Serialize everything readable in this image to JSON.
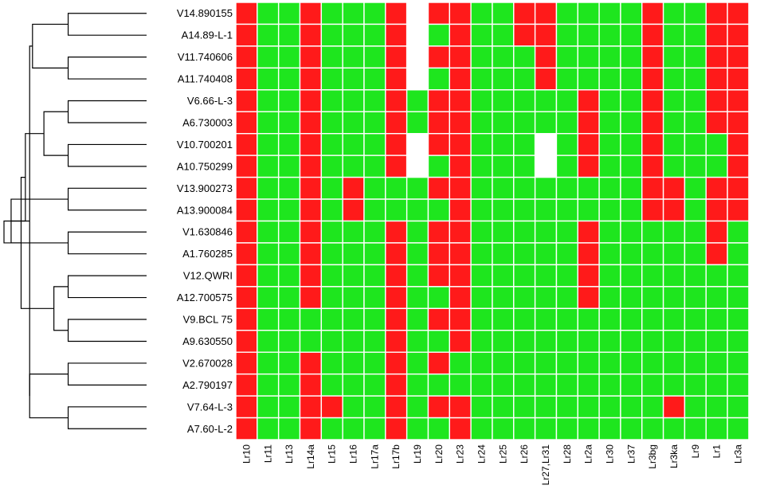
{
  "chart_data": {
    "type": "heatmap",
    "title": "",
    "xlabel": "",
    "ylabel": "",
    "colors": {
      "1": "#ff1a1a",
      "0": "#1ee61e",
      "null": "#ffffff",
      "grid": "#ffffff"
    },
    "rows": [
      "V14.890155",
      "A14.89-L-1",
      "V11.740606",
      "A11.740408",
      "V6.66-L-3",
      "A6.730003",
      "V10.700201",
      "A10.750299",
      "V13.900273",
      "A13.900084",
      "V1.630846",
      "A1.760285",
      "V12.QWRI",
      "A12.700575",
      "V9.BCL 75",
      "A9.630550",
      "V2.670028",
      "A2.790197",
      "V7.64-L-3",
      "A7.60-L-2"
    ],
    "columns": [
      "Lr10",
      "Lr11",
      "Lr13",
      "Lr14a",
      "Lr15",
      "Lr16",
      "Lr17a",
      "Lr17b",
      "Lr19",
      "Lr20",
      "Lr23",
      "Lr24",
      "Lr25",
      "Lr26",
      "Lr27,Lr31",
      "Lr28",
      "Lr2a",
      "Lr30",
      "Lr37",
      "Lr3bg",
      "Lr3ka",
      "Lr9",
      "Lr1",
      "Lr3a"
    ],
    "values": [
      [
        1,
        0,
        0,
        1,
        0,
        0,
        0,
        1,
        null,
        1,
        1,
        0,
        0,
        1,
        1,
        0,
        0,
        0,
        0,
        1,
        0,
        0,
        1,
        1
      ],
      [
        1,
        0,
        0,
        1,
        0,
        0,
        0,
        1,
        null,
        0,
        1,
        0,
        0,
        1,
        1,
        0,
        0,
        0,
        0,
        1,
        0,
        0,
        1,
        1
      ],
      [
        1,
        0,
        0,
        1,
        0,
        0,
        0,
        1,
        null,
        1,
        1,
        0,
        0,
        0,
        1,
        0,
        0,
        0,
        0,
        1,
        0,
        0,
        1,
        1
      ],
      [
        1,
        0,
        0,
        1,
        0,
        0,
        0,
        1,
        null,
        0,
        1,
        0,
        0,
        0,
        1,
        0,
        0,
        0,
        0,
        1,
        0,
        0,
        1,
        1
      ],
      [
        1,
        0,
        0,
        1,
        0,
        0,
        0,
        1,
        0,
        1,
        1,
        0,
        0,
        0,
        0,
        0,
        1,
        0,
        0,
        1,
        0,
        0,
        1,
        1
      ],
      [
        1,
        0,
        0,
        1,
        0,
        0,
        0,
        1,
        0,
        1,
        1,
        0,
        0,
        0,
        0,
        0,
        1,
        0,
        0,
        1,
        0,
        0,
        1,
        1
      ],
      [
        1,
        0,
        0,
        1,
        0,
        0,
        0,
        1,
        null,
        1,
        1,
        0,
        0,
        0,
        null,
        0,
        1,
        0,
        0,
        1,
        0,
        0,
        0,
        1
      ],
      [
        1,
        0,
        0,
        1,
        0,
        0,
        0,
        1,
        null,
        0,
        1,
        0,
        0,
        0,
        null,
        0,
        1,
        0,
        0,
        1,
        0,
        0,
        0,
        1
      ],
      [
        1,
        0,
        0,
        1,
        0,
        1,
        0,
        0,
        0,
        1,
        1,
        0,
        0,
        0,
        0,
        0,
        0,
        0,
        0,
        1,
        1,
        0,
        1,
        1
      ],
      [
        1,
        0,
        0,
        1,
        0,
        1,
        0,
        0,
        0,
        0,
        1,
        0,
        0,
        0,
        0,
        0,
        0,
        0,
        0,
        1,
        1,
        0,
        1,
        1
      ],
      [
        1,
        0,
        0,
        1,
        0,
        0,
        0,
        1,
        0,
        1,
        1,
        0,
        0,
        0,
        0,
        0,
        1,
        0,
        0,
        0,
        0,
        0,
        1,
        0
      ],
      [
        1,
        0,
        0,
        1,
        0,
        0,
        0,
        1,
        0,
        1,
        1,
        0,
        0,
        0,
        0,
        0,
        1,
        0,
        0,
        0,
        0,
        0,
        1,
        0
      ],
      [
        1,
        0,
        0,
        1,
        0,
        0,
        0,
        1,
        0,
        1,
        1,
        0,
        0,
        0,
        0,
        0,
        1,
        0,
        0,
        0,
        0,
        0,
        0,
        0
      ],
      [
        1,
        0,
        0,
        1,
        0,
        0,
        0,
        1,
        0,
        0,
        1,
        0,
        0,
        0,
        0,
        0,
        1,
        0,
        0,
        0,
        0,
        0,
        0,
        0
      ],
      [
        1,
        0,
        0,
        0,
        0,
        0,
        0,
        1,
        0,
        1,
        1,
        0,
        0,
        0,
        0,
        0,
        0,
        0,
        0,
        0,
        0,
        0,
        0,
        0
      ],
      [
        1,
        0,
        0,
        0,
        0,
        0,
        0,
        1,
        0,
        0,
        1,
        0,
        0,
        0,
        0,
        0,
        0,
        0,
        0,
        0,
        0,
        0,
        0,
        0
      ],
      [
        1,
        0,
        0,
        1,
        0,
        0,
        0,
        1,
        0,
        1,
        0,
        0,
        0,
        0,
        0,
        0,
        0,
        0,
        0,
        0,
        0,
        0,
        0,
        0
      ],
      [
        1,
        0,
        0,
        1,
        0,
        0,
        0,
        1,
        0,
        0,
        0,
        0,
        0,
        0,
        0,
        0,
        0,
        0,
        0,
        0,
        0,
        0,
        0,
        0
      ],
      [
        1,
        0,
        0,
        1,
        1,
        0,
        0,
        1,
        0,
        1,
        1,
        0,
        0,
        0,
        0,
        0,
        0,
        0,
        0,
        0,
        1,
        0,
        0,
        0
      ],
      [
        1,
        0,
        0,
        1,
        0,
        0,
        0,
        1,
        0,
        0,
        1,
        0,
        0,
        0,
        0,
        0,
        0,
        0,
        0,
        0,
        0,
        0,
        0,
        0
      ]
    ],
    "dendrogram": {
      "orientation": "left",
      "merges": [
        [
          0,
          1,
          0.55
        ],
        [
          2,
          3,
          0.55
        ],
        [
          4,
          5,
          0.55
        ],
        [
          6,
          7,
          0.55
        ],
        [
          8,
          9,
          0.55
        ],
        [
          10,
          11,
          0.55
        ],
        [
          12,
          13,
          0.55
        ],
        [
          14,
          15,
          0.55
        ],
        [
          16,
          17,
          0.55
        ],
        [
          18,
          19,
          0.55
        ],
        [
          20,
          21,
          0.8
        ],
        [
          22,
          23,
          0.72
        ],
        [
          25,
          24,
          0.95
        ],
        [
          26,
          27,
          0.65
        ],
        [
          28,
          29,
          0.82
        ],
        [
          31,
          32,
          0.85
        ],
        [
          30,
          34,
          0.82
        ],
        [
          33,
          35,
          0.88
        ],
        [
          36,
          37,
          1.0
        ]
      ]
    }
  }
}
